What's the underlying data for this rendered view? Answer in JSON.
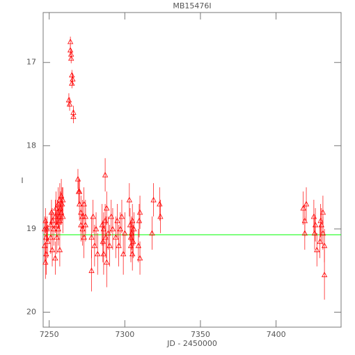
{
  "chart_data": {
    "type": "scatter",
    "title": "MB15476I",
    "xlabel": "JD - 2450000",
    "ylabel": "I",
    "xlim": [
      7246,
      7443
    ],
    "ylim": [
      16.4,
      20.18
    ],
    "y_inverted": true,
    "xticks": [
      7250,
      7300,
      7350,
      7400
    ],
    "yticks": [
      17,
      18,
      19,
      20
    ],
    "series": [
      {
        "name": "I",
        "color": "#ff0000",
        "x": [
          7247,
          7247,
          7247.5,
          7247.5,
          7248,
          7248,
          7248.5,
          7249,
          7251,
          7251,
          7251.5,
          7252,
          7252,
          7253,
          7254,
          7254.5,
          7255,
          7255,
          7255.5,
          7256,
          7256,
          7256.5,
          7257,
          7257,
          7257.5,
          7258,
          7258,
          7258.5,
          7259,
          7259,
          7254,
          7257,
          7263,
          7263.5,
          7264,
          7264,
          7264.5,
          7264.5,
          7265,
          7265,
          7265.5,
          7266,
          7266,
          7269,
          7269.5,
          7270,
          7270,
          7271,
          7271,
          7272,
          7272,
          7273,
          7273,
          7274,
          7274,
          7278,
          7278,
          7279,
          7280,
          7281,
          7282,
          7285,
          7285.5,
          7286,
          7286,
          7287,
          7287,
          7287.5,
          7288,
          7288,
          7289,
          7290,
          7291,
          7292,
          7294,
          7295,
          7296,
          7297,
          7298,
          7299,
          7300,
          7303,
          7303.5,
          7304,
          7304,
          7304.5,
          7305,
          7305,
          7305.5,
          7306,
          7309,
          7309.5,
          7310,
          7310,
          7318,
          7319,
          7323,
          7323.5,
          7418,
          7419,
          7419,
          7420,
          7425,
          7425.5,
          7426,
          7427,
          7429,
          7429.5,
          7430,
          7431,
          7431,
          7432,
          7432
        ],
        "values": [
          19.0,
          19.2,
          19.4,
          18.9,
          19.1,
          19.3,
          19.0,
          19.15,
          18.95,
          19.1,
          18.8,
          19.25,
          18.9,
          19.0,
          18.85,
          18.75,
          18.95,
          19.1,
          18.8,
          18.7,
          19.0,
          18.85,
          18.65,
          18.9,
          18.75,
          18.6,
          18.8,
          18.7,
          18.65,
          18.85,
          19.35,
          19.25,
          17.45,
          17.5,
          16.85,
          16.75,
          16.95,
          16.9,
          17.15,
          17.25,
          17.2,
          17.6,
          17.65,
          18.4,
          18.55,
          18.7,
          18.55,
          18.8,
          18.95,
          18.85,
          19.0,
          18.7,
          19.1,
          18.95,
          18.85,
          19.1,
          19.5,
          18.85,
          19.2,
          19.0,
          19.3,
          18.95,
          19.15,
          19.0,
          19.3,
          18.35,
          18.9,
          19.1,
          19.4,
          18.75,
          19.05,
          19.2,
          18.85,
          19.0,
          19.1,
          18.9,
          19.2,
          19.0,
          18.85,
          19.3,
          19.05,
          18.65,
          18.95,
          19.1,
          19.2,
          19.05,
          18.9,
          19.3,
          19.15,
          19.0,
          19.2,
          18.9,
          19.35,
          18.8,
          19.05,
          18.65,
          18.7,
          18.85,
          18.75,
          18.9,
          19.05,
          18.7,
          18.85,
          19.05,
          18.95,
          19.25,
          19.15,
          18.9,
          18.95,
          18.8,
          19.05,
          19.2,
          19.55
        ],
        "errors": [
          0.15,
          0.2,
          0.2,
          0.15,
          0.2,
          0.25,
          0.15,
          0.2,
          0.15,
          0.2,
          0.15,
          0.2,
          0.15,
          0.2,
          0.2,
          0.2,
          0.15,
          0.2,
          0.15,
          0.2,
          0.2,
          0.15,
          0.2,
          0.15,
          0.2,
          0.2,
          0.15,
          0.2,
          0.15,
          0.2,
          0.2,
          0.2,
          0.08,
          0.08,
          0.06,
          0.06,
          0.06,
          0.06,
          0.06,
          0.06,
          0.07,
          0.08,
          0.08,
          0.12,
          0.15,
          0.2,
          0.15,
          0.2,
          0.2,
          0.2,
          0.2,
          0.2,
          0.25,
          0.2,
          0.2,
          0.25,
          0.25,
          0.2,
          0.25,
          0.2,
          0.25,
          0.25,
          0.25,
          0.2,
          0.25,
          0.2,
          0.2,
          0.25,
          0.3,
          0.2,
          0.2,
          0.25,
          0.2,
          0.25,
          0.25,
          0.2,
          0.25,
          0.2,
          0.2,
          0.25,
          0.25,
          0.2,
          0.2,
          0.2,
          0.2,
          0.2,
          0.2,
          0.2,
          0.2,
          0.2,
          0.2,
          0.2,
          0.2,
          0.2,
          0.2,
          0.2,
          0.2,
          0.2,
          0.2,
          0.2,
          0.2,
          0.2,
          0.2,
          0.2,
          0.2,
          0.2,
          0.2,
          0.2,
          0.2,
          0.2,
          0.2,
          0.2,
          0.3
        ]
      }
    ],
    "fit_line": {
      "value": 19.07,
      "color": "#00ff00"
    }
  }
}
